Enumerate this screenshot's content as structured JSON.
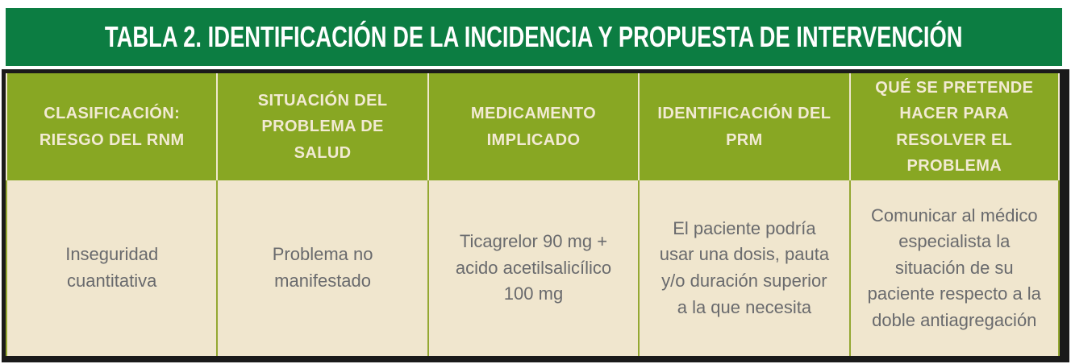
{
  "title": "TABLA 2. IDENTIFICACIÓN DE LA INCIDENCIA Y PROPUESTA DE INTERVENCIÓN",
  "colors": {
    "title_bar_green": "#0c7d42",
    "header_olive": "#88a723",
    "header_text_cream": "#f2ead3",
    "body_beige": "#f0e6ce",
    "body_text_gray": "#696a6d",
    "frame_black": "#1a1a1a",
    "header_divider": "#efe7cd",
    "body_divider": "#94a832"
  },
  "table": {
    "columns": [
      {
        "header": "CLASIFICACIÓN: RIESGO DEL RNM",
        "value": "Inseguridad cuantitativa"
      },
      {
        "header": "SITUACIÓN DEL PROBLEMA DE SALUD",
        "value": "Problema no manifestado"
      },
      {
        "header": "MEDICAMENTO IMPLICADO",
        "value": "Ticagrelor 90 mg + acido acetilsalicílico 100 mg"
      },
      {
        "header": "IDENTIFICACIÓN DEL PRM",
        "value": "El paciente podría usar una dosis, pauta y/o duración superior a la que necesita"
      },
      {
        "header": "QUÉ SE PRETENDE HACER PARA RESOLVER EL PROBLEMA",
        "value": "Comunicar al médico especialista la situación de su paciente respecto a la doble antiagregación"
      }
    ]
  }
}
